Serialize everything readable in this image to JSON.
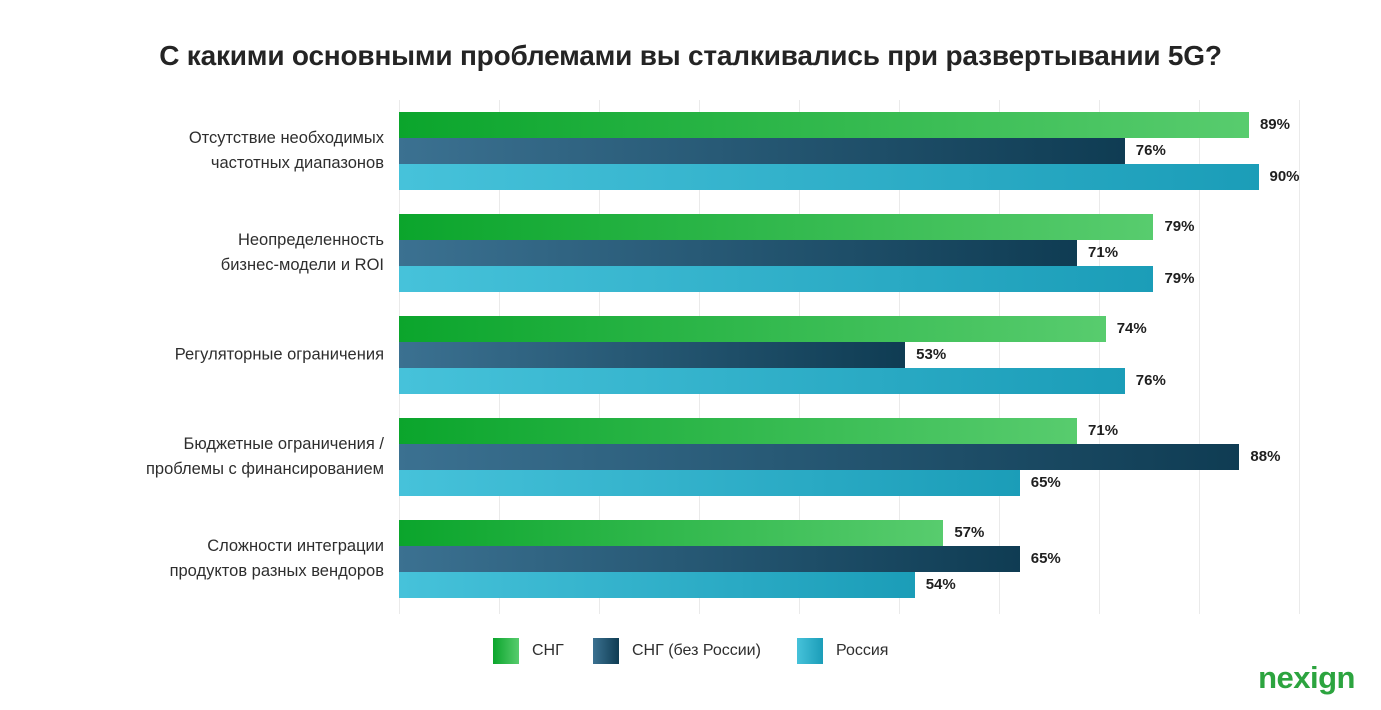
{
  "title": "С какими основными проблемами вы сталкивались при развертывании 5G?",
  "logo": {
    "text": "nexign",
    "color": "#2ca43f"
  },
  "chart_data": {
    "type": "bar",
    "orientation": "horizontal",
    "title": "С какими основными проблемами вы сталкивались при развертывании 5G?",
    "categories": [
      "Отсутствие необходимых частотных диапазонов",
      "Неопределенность бизнес-модели и ROI",
      "Регуляторные ограничения",
      "Бюджетные ограничения / проблемы с финансированием",
      "Сложности интеграции продуктов разных вендоров"
    ],
    "categories_lines": [
      [
        "Отсутствие необходимых",
        "частотных диапазонов"
      ],
      [
        "Неопределенность",
        "бизнес-модели и ROI"
      ],
      [
        "Регуляторные ограничения"
      ],
      [
        "Бюджетные ограничения /",
        "проблемы с финансированием"
      ],
      [
        "Сложности интеграции",
        "продуктов разных вендоров"
      ]
    ],
    "series": [
      {
        "name": "СНГ",
        "values": [
          89,
          79,
          74,
          71,
          57
        ],
        "gradient": [
          "#0ba52c",
          "#58cc6e"
        ]
      },
      {
        "name": "СНГ (без России)",
        "values": [
          76,
          71,
          53,
          88,
          65
        ],
        "gradient": [
          "#3b7191",
          "#0f3c53"
        ]
      },
      {
        "name": "Россия",
        "values": [
          90,
          79,
          76,
          65,
          54
        ],
        "gradient": [
          "#46c2da",
          "#1b9db8"
        ]
      }
    ],
    "value_suffix": "%",
    "xlim": [
      0,
      100
    ],
    "grid": true,
    "gridline_color": "#eaeaea",
    "legend_position": "bottom",
    "background": "#ffffff"
  }
}
